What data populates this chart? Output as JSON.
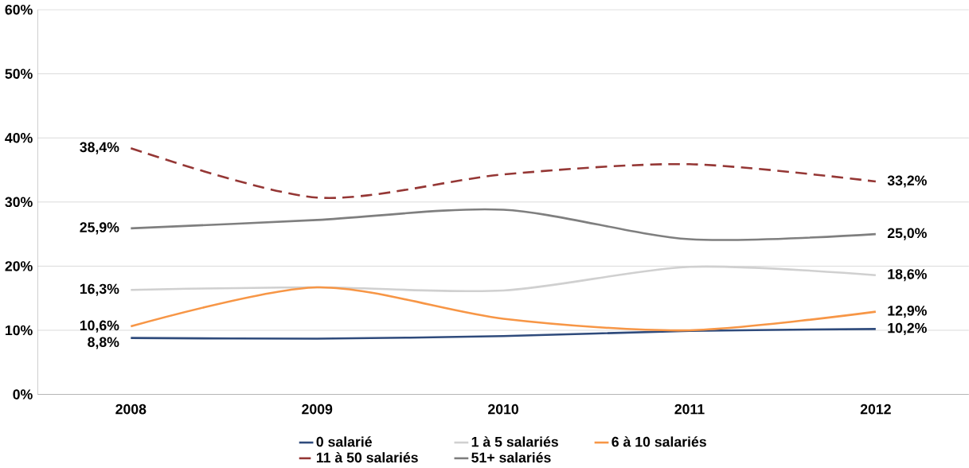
{
  "chart_data": {
    "type": "line",
    "categories": [
      "2008",
      "2009",
      "2010",
      "2011",
      "2012"
    ],
    "series": [
      {
        "name": "0 salarié",
        "color": "#2f4b7c",
        "values": [
          8.8,
          8.7,
          9.1,
          9.9,
          10.2
        ],
        "value_labels": [
          "8,8%",
          null,
          null,
          null,
          "10,2%"
        ]
      },
      {
        "name": "1 à 5 salariés",
        "color": "#d0d0d0",
        "values": [
          16.3,
          16.7,
          16.2,
          19.9,
          18.6
        ],
        "value_labels": [
          "16,3%",
          null,
          null,
          null,
          "18,6%"
        ]
      },
      {
        "name": "6 à 10 salariés",
        "color": "#f79646",
        "values": [
          10.6,
          16.7,
          11.8,
          10.0,
          12.9
        ],
        "value_labels": [
          "10,6%",
          null,
          null,
          null,
          "12,9%"
        ]
      },
      {
        "name": "11 à 50 salariés",
        "color": "#953735",
        "line_style": "dashed",
        "values": [
          38.4,
          30.7,
          34.3,
          35.9,
          33.2
        ],
        "value_labels": [
          "38,4%",
          null,
          null,
          null,
          "33,2%"
        ]
      },
      {
        "name": "51+ salariés",
        "color": "#7f7f7f",
        "values": [
          25.9,
          27.2,
          28.8,
          24.2,
          25.0
        ],
        "value_labels": [
          "25,9%",
          null,
          null,
          null,
          "25,0%"
        ]
      }
    ],
    "ylim": [
      0,
      60
    ],
    "yticks": [
      {
        "value": 0,
        "label": "0%"
      },
      {
        "value": 10,
        "label": "10%"
      },
      {
        "value": 20,
        "label": "20%"
      },
      {
        "value": 30,
        "label": "30%"
      },
      {
        "value": 40,
        "label": "40%"
      },
      {
        "value": 50,
        "label": "50%"
      },
      {
        "value": 60,
        "label": "60%"
      }
    ],
    "grid": "y",
    "legend": "bottom",
    "marker": "none"
  }
}
